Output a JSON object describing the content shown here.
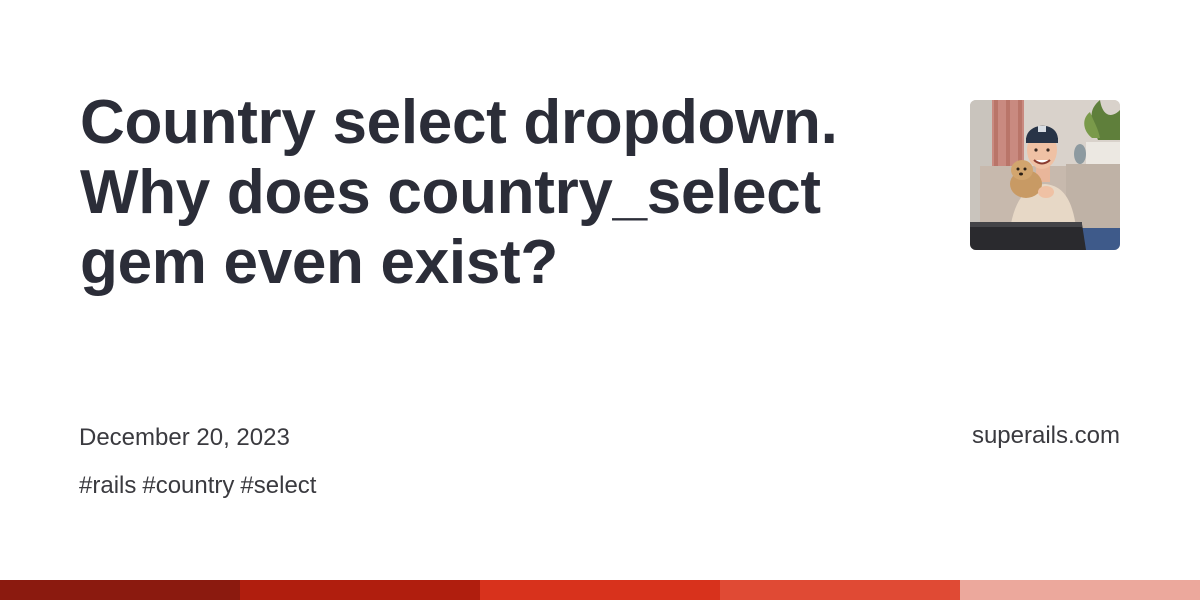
{
  "post": {
    "title_line1": "Country select dropdown.",
    "title_line2": "Why does country_select",
    "title_line3": "gem even exist?",
    "date": "December 20, 2023",
    "tags": [
      "#rails",
      "#country",
      "#select"
    ]
  },
  "site": {
    "name": "superails.com"
  },
  "colors": {
    "title_text": "#2b2d38",
    "meta_text": "#3a3a3f",
    "stripe": [
      "#8b1a0f",
      "#b01e0e",
      "#d8321c",
      "#e04a34",
      "#eca89c"
    ]
  },
  "icons": {
    "avatar": "author-photo"
  }
}
